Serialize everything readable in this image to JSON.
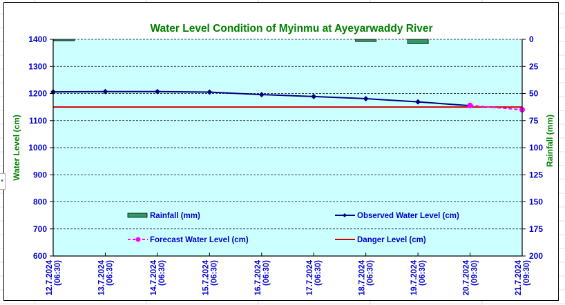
{
  "chart_data": {
    "type": "line",
    "title": "Water Level Condition of Myinmu at Ayeyarwaddy River",
    "ylabel": "Water Level (cm)",
    "y2label": "Rainfall (mm)",
    "xlabel": "",
    "ylim": [
      600,
      1400
    ],
    "yticks": [
      600,
      700,
      800,
      900,
      1000,
      1100,
      1200,
      1300,
      1400
    ],
    "y2lim": [
      0,
      200
    ],
    "y2_inverted": true,
    "y2ticks": [
      0,
      25,
      50,
      75,
      100,
      125,
      150,
      175,
      200
    ],
    "grid": true,
    "categories": [
      [
        "12.7.2024",
        "(06:30)"
      ],
      [
        "13.7.2024",
        "(06:30)"
      ],
      [
        "14.7.2024",
        "(06:30)"
      ],
      [
        "15.7.2024",
        "(06:30)"
      ],
      [
        "16.7.2024",
        "(06:30)"
      ],
      [
        "17.7.2024",
        "(06:30)"
      ],
      [
        "18.7.2024",
        "(06:30)"
      ],
      [
        "19.7.2024",
        "(06:30)"
      ],
      [
        "20.7.2024",
        "(09:30)"
      ],
      [
        "21.7.2024",
        "(09:30)"
      ]
    ],
    "series": [
      {
        "name": "Rainfall (mm)",
        "type": "bar",
        "axis": "right",
        "color": "#339966",
        "values": [
          1,
          0,
          0,
          0,
          0,
          0,
          2,
          4,
          0,
          0
        ]
      },
      {
        "name": "Observed Water Level (cm)",
        "type": "line",
        "axis": "left",
        "color": "#000080",
        "values": [
          1206,
          1207,
          1207,
          1205,
          1196,
          1189,
          1181,
          1169,
          1155,
          null
        ]
      },
      {
        "name": "Forecast Water Level (cm)",
        "type": "line-dashed",
        "axis": "left",
        "color": "#FF00FF",
        "values": [
          null,
          null,
          null,
          null,
          null,
          null,
          null,
          null,
          1156,
          1140
        ]
      },
      {
        "name": "Danger Level (cm)",
        "type": "line",
        "axis": "left",
        "color": "#CC0000",
        "values": [
          1150,
          1150,
          1150,
          1150,
          1150,
          1150,
          1150,
          1150,
          1150,
          1150
        ]
      }
    ],
    "legend": {
      "placement": "bottom-inside",
      "items": [
        "Rainfall (mm)",
        "Observed Water Level (cm)",
        "Forecast Water Level (cm)",
        "Danger Level (cm)"
      ]
    }
  },
  "colors": {
    "title": "#008000",
    "axis_label": "#008000",
    "tick": "#0000CC",
    "plot_bg": "#CCFFFF",
    "legend_text": "#0000CC"
  }
}
